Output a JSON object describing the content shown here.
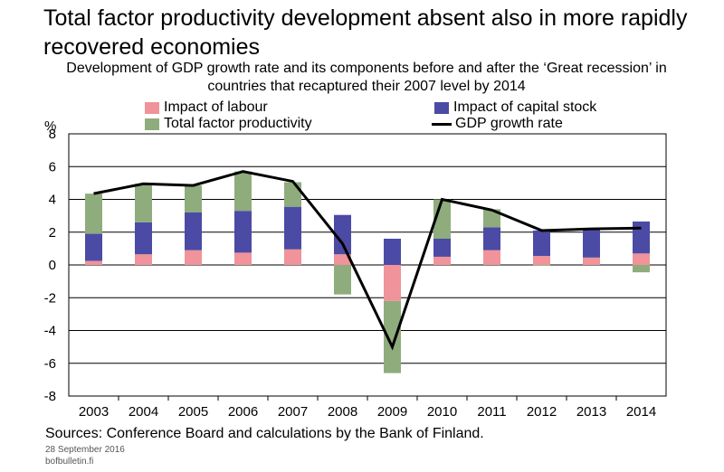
{
  "title": "Total factor productivity development absent also in more rapidly recovered economies",
  "subtitle": "Development of GDP growth rate and its components before and after the ‘Great recession’ in countries that recaptured their 2007 level by 2014",
  "unit_label": "%",
  "sources": "Sources: Conference Board and calculations by the Bank of Finland.",
  "date": "28 September 2016",
  "site": "bofbulletin.fi",
  "colors": {
    "labour": "#f0939a",
    "capital": "#4b4ba5",
    "tfp": "#8fac7d",
    "gdp": "#000000"
  },
  "legend": {
    "labour": "Impact of labour",
    "capital": "Impact of capital stock",
    "tfp": "Total factor productivity",
    "gdp": "GDP growth rate"
  },
  "chart_data": {
    "type": "bar",
    "stacked": true,
    "title": "Total factor productivity development absent also in more rapidly recovered economies",
    "subtitle": "Development of GDP growth rate and its components before and after the ‘Great recession’ in countries that recaptured their 2007 level by 2014",
    "ylabel": "%",
    "ylim": [
      -8,
      8
    ],
    "yticks": [
      8,
      6,
      4,
      2,
      0,
      -2,
      -4,
      -6,
      -8
    ],
    "grid": "horizontal",
    "legend_position": "top",
    "categories": [
      "2003",
      "2004",
      "2005",
      "2006",
      "2007",
      "2008",
      "2009",
      "2010",
      "2011",
      "2012",
      "2013",
      "2014"
    ],
    "series": [
      {
        "name": "Impact of labour",
        "kind": "bar",
        "values": [
          0.25,
          0.65,
          0.9,
          0.75,
          0.95,
          0.65,
          -2.2,
          0.5,
          0.9,
          0.55,
          0.45,
          0.7
        ]
      },
      {
        "name": "Impact of capital stock",
        "kind": "bar",
        "values": [
          1.65,
          1.95,
          2.3,
          2.55,
          2.6,
          2.4,
          1.6,
          1.1,
          1.4,
          1.55,
          1.75,
          1.95
        ]
      },
      {
        "name": "Total factor productivity",
        "kind": "bar",
        "values": [
          2.45,
          2.35,
          1.65,
          2.4,
          1.5,
          -1.8,
          -4.4,
          2.4,
          1.1,
          -0.05,
          0.0,
          -0.45
        ]
      },
      {
        "name": "GDP growth rate",
        "kind": "line",
        "values": [
          4.35,
          4.95,
          4.85,
          5.7,
          5.1,
          1.3,
          -5.0,
          4.0,
          3.35,
          2.1,
          2.2,
          2.25
        ]
      }
    ]
  }
}
